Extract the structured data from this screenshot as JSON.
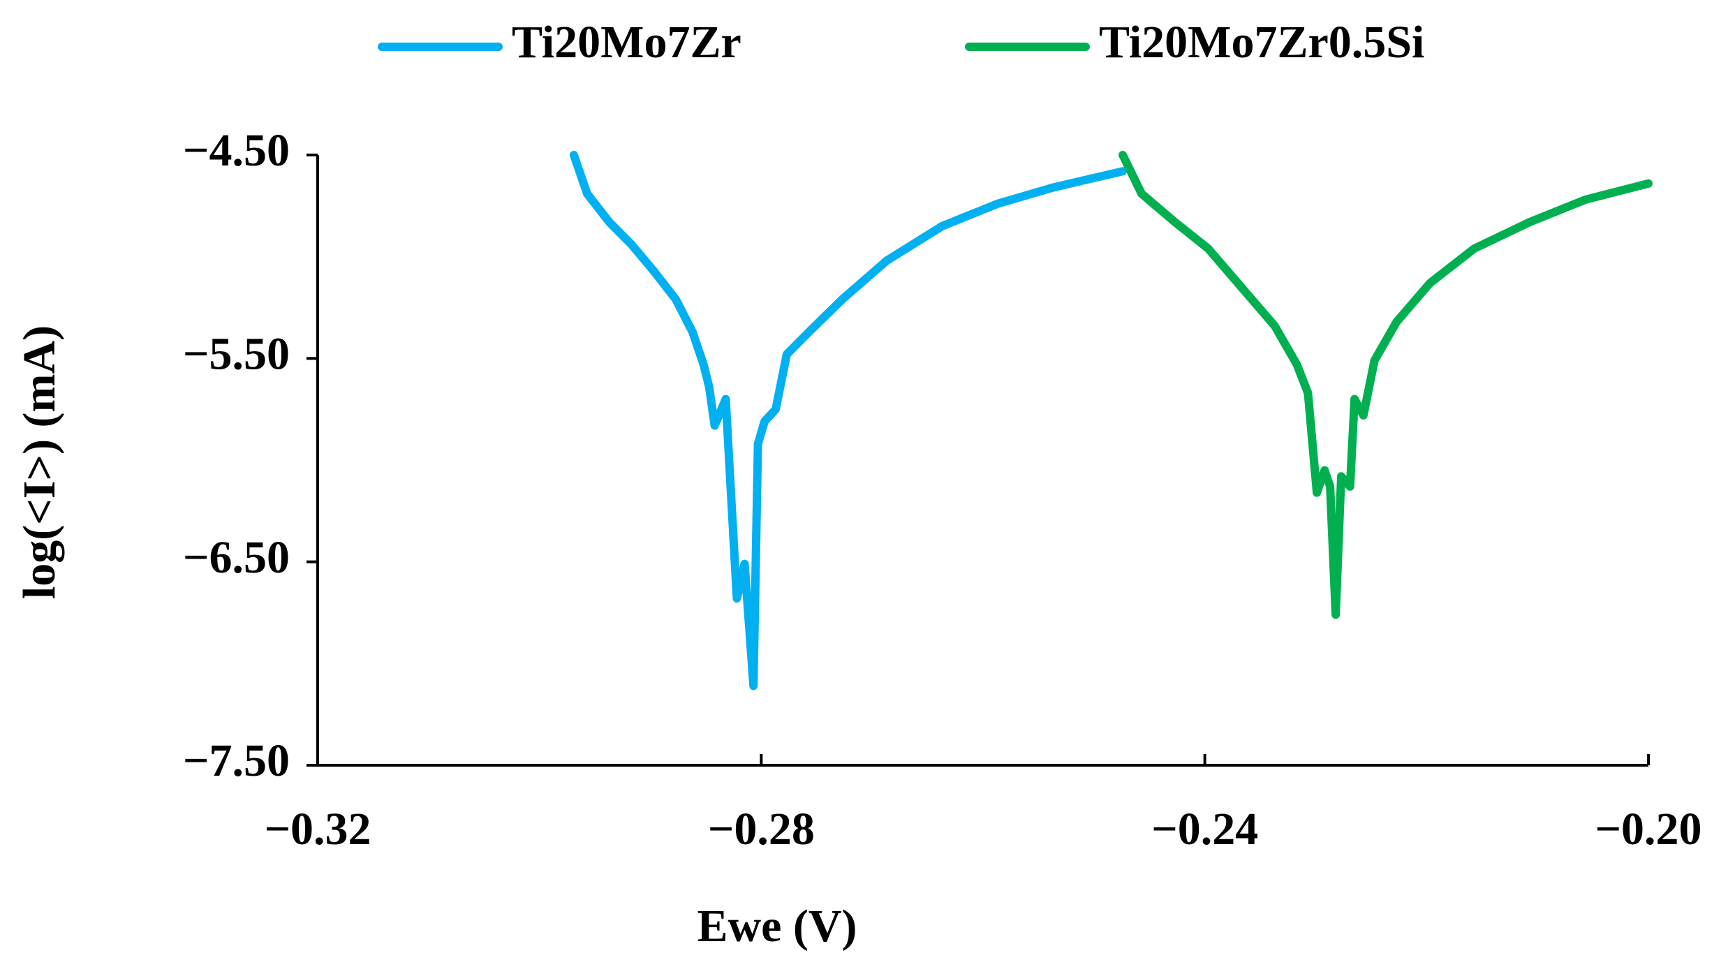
{
  "chart_data": {
    "type": "line",
    "xlabel": "Ewe (V)",
    "ylabel": "log(<I>) (mA)",
    "xlim": [
      -0.32,
      -0.2
    ],
    "ylim": [
      -7.5,
      -4.5
    ],
    "xticks": [
      {
        "value": -0.32,
        "label": "−0.32"
      },
      {
        "value": -0.28,
        "label": "−0.28"
      },
      {
        "value": -0.24,
        "label": "−0.24"
      },
      {
        "value": -0.2,
        "label": "−0.20"
      }
    ],
    "yticks": [
      {
        "value": -4.5,
        "label": "−4.50"
      },
      {
        "value": -5.5,
        "label": "−5.50"
      },
      {
        "value": -6.5,
        "label": "−6.50"
      },
      {
        "value": -7.5,
        "label": "−7.50"
      }
    ],
    "grid": false,
    "legend": "top",
    "series": [
      {
        "name": "Ti20Mo7Zr",
        "color": "#00b0f0",
        "x": [
          -0.2969,
          -0.2957,
          -0.2937,
          -0.2917,
          -0.2897,
          -0.2877,
          -0.2862,
          -0.2852,
          -0.2847,
          -0.2842,
          -0.2832,
          -0.2827,
          -0.2822,
          -0.2815,
          -0.2807,
          -0.2803,
          -0.2797,
          -0.2787,
          -0.2777,
          -0.2757,
          -0.2727,
          -0.2687,
          -0.2637,
          -0.2587,
          -0.2537,
          -0.2474
        ],
        "values": [
          -4.5,
          -4.69,
          -4.83,
          -4.94,
          -5.07,
          -5.21,
          -5.37,
          -5.53,
          -5.64,
          -5.83,
          -5.7,
          -6.19,
          -6.68,
          -6.51,
          -7.11,
          -5.92,
          -5.81,
          -5.75,
          -5.48,
          -5.37,
          -5.21,
          -5.02,
          -4.85,
          -4.74,
          -4.66,
          -4.58
        ]
      },
      {
        "name": "Ti20Mo7Zr0.5Si",
        "color": "#00b050",
        "x": [
          -0.2474,
          -0.2457,
          -0.2427,
          -0.2397,
          -0.2367,
          -0.2337,
          -0.2317,
          -0.2307,
          -0.2299,
          -0.2292,
          -0.2287,
          -0.2282,
          -0.2277,
          -0.2269,
          -0.2265,
          -0.2257,
          -0.2247,
          -0.2227,
          -0.2197,
          -0.2157,
          -0.2107,
          -0.2057,
          -0.2
        ],
        "values": [
          -4.5,
          -4.69,
          -4.83,
          -4.96,
          -5.15,
          -5.34,
          -5.53,
          -5.67,
          -6.16,
          -6.05,
          -6.13,
          -6.76,
          -6.08,
          -6.13,
          -5.7,
          -5.78,
          -5.51,
          -5.32,
          -5.13,
          -4.96,
          -4.83,
          -4.72,
          -4.64
        ]
      }
    ]
  }
}
